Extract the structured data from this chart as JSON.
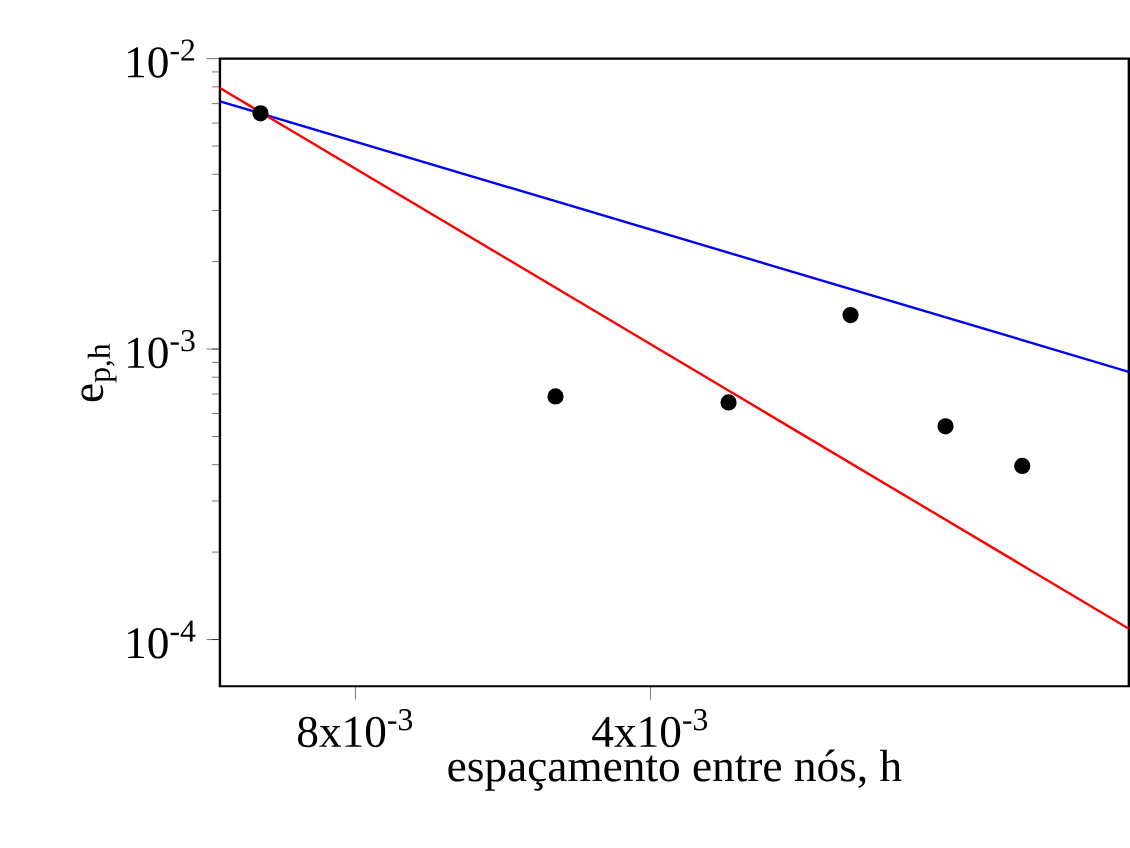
{
  "chart_data": {
    "type": "scatter",
    "xlabel": "espaçamento entre nós, h",
    "ylabel": "e$_{p,h}$",
    "log": "xy",
    "xlim": [
      0.011,
      0.0013
    ],
    "ylim": [
      6.9e-05,
      0.01
    ],
    "xticks": [
      {
        "value": 0.008,
        "label": "8x10$^{-3}$"
      },
      {
        "value": 0.004,
        "label": "4x10$^{-3}$"
      }
    ],
    "yticks": [
      {
        "value": 0.0001,
        "label": "10$^{-4}$"
      },
      {
        "value": 0.001,
        "label": "10$^{-3}$"
      },
      {
        "value": 0.01,
        "label": "10$^{-2}$"
      }
    ],
    "series": [
      {
        "marker": "circle",
        "color": "#000000",
        "x": [
          0.01,
          0.005,
          0.00333,
          0.0025,
          0.002,
          0.00167
        ],
        "values": [
          0.00648,
          0.000687,
          0.000655,
          0.00131,
          0.000542,
          0.000396
        ]
      },
      {
        "type": "line",
        "marker": "none",
        "color": "#0000ff",
        "x": [
          0.011,
          0.0013
        ],
        "values": [
          0.00713,
          0.000835
        ]
      },
      {
        "type": "line",
        "marker": "none",
        "color": "#ff0000",
        "x": [
          0.011,
          0.0013
        ],
        "values": [
          0.00792,
          0.000109
        ]
      }
    ]
  }
}
